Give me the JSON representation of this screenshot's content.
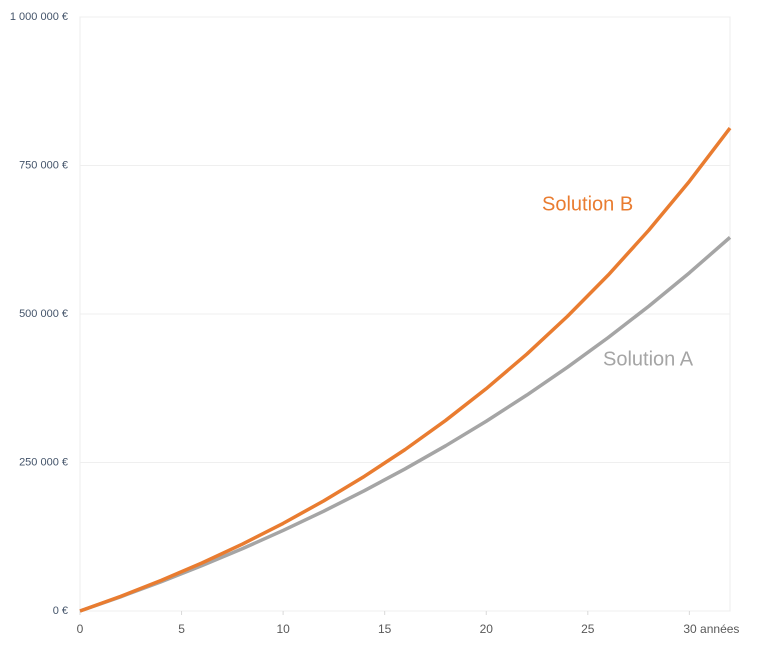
{
  "chart_data": {
    "type": "line",
    "x": [
      0,
      2,
      4,
      6,
      8,
      10,
      12,
      14,
      16,
      18,
      20,
      22,
      24,
      26,
      28,
      30,
      32
    ],
    "series": [
      {
        "name": "Solution A",
        "color": "#a5a5a5",
        "values": [
          0,
          23900,
          49300,
          76300,
          105000,
          135600,
          168100,
          202500,
          239200,
          278100,
          319500,
          363600,
          410400,
          460200,
          513100,
          569300,
          629000
        ]
      },
      {
        "name": "Solution B",
        "color": "#e97c30",
        "values": [
          0,
          24600,
          51500,
          80800,
          112700,
          147500,
          185400,
          226700,
          271700,
          320800,
          374300,
          432600,
          496200,
          565400,
          641000,
          723300,
          813000
        ]
      }
    ],
    "xlim": [
      0,
      32
    ],
    "xticks": [
      0,
      5,
      10,
      15,
      20,
      25,
      {
        "value": 30,
        "label": "30 années"
      }
    ],
    "ylim": [
      0,
      1000000
    ],
    "yticks": [
      {
        "value": 0,
        "label": "0 €"
      },
      {
        "value": 250000,
        "label": "250 000 €"
      },
      {
        "value": 500000,
        "label": "500 000 €"
      },
      {
        "value": 750000,
        "label": "750 000 €"
      },
      {
        "value": 1000000,
        "label": "1 000 000 €"
      }
    ],
    "grid": true
  }
}
